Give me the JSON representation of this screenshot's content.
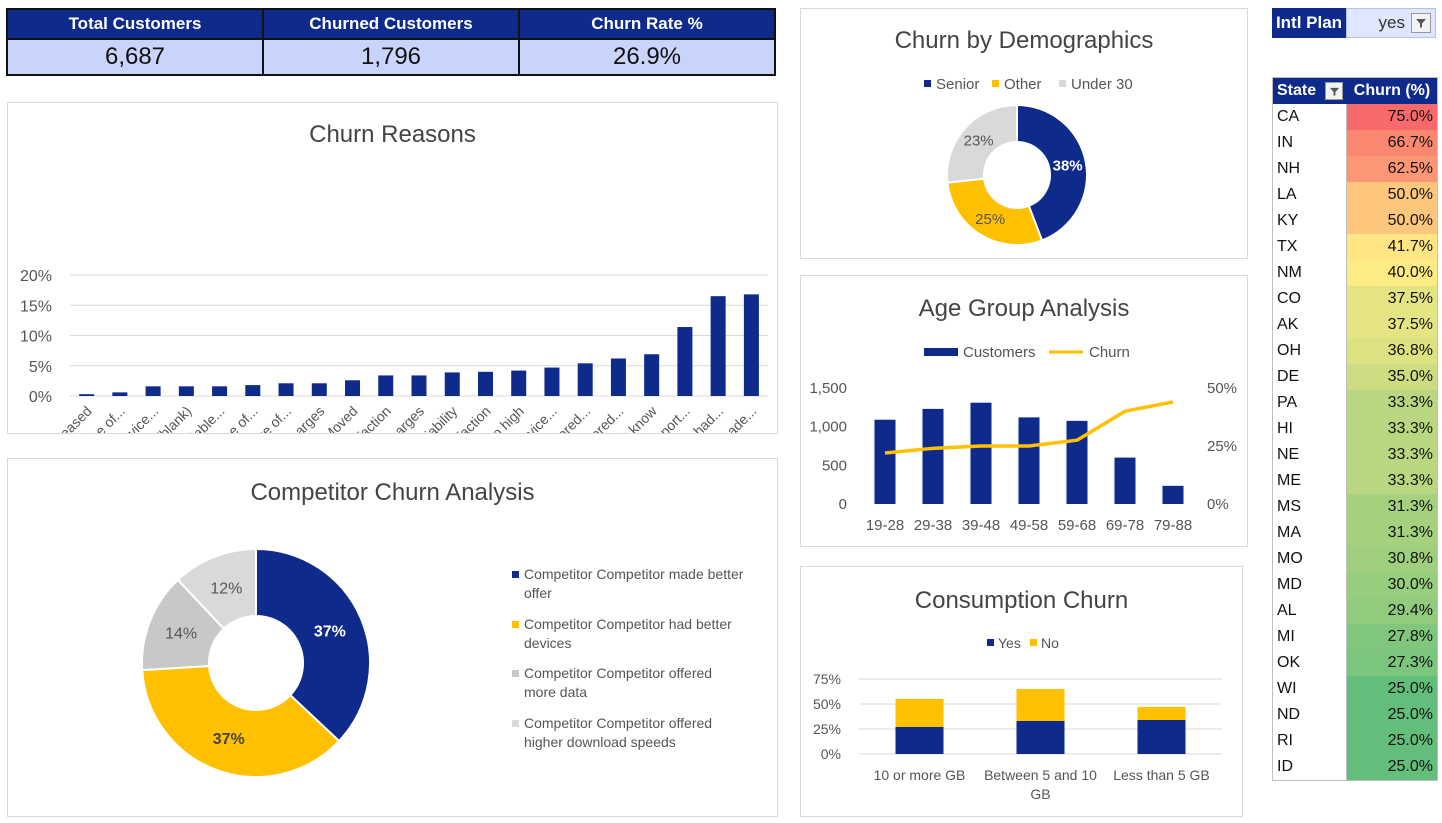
{
  "kpis": [
    {
      "label": "Total Customers",
      "value": "6,687"
    },
    {
      "label": "Churned Customers",
      "value": "1,796"
    },
    {
      "label": "Churn Rate %",
      "value": "26.9%"
    }
  ],
  "filter": {
    "label": "Intl Plan",
    "value": "yes",
    "icon": "filter-icon"
  },
  "state_table": {
    "headers": {
      "state": "State",
      "churn": "Churn (%)"
    },
    "rows": [
      {
        "state": "CA",
        "churn": "75.0%",
        "value": 75.0
      },
      {
        "state": "IN",
        "churn": "66.7%",
        "value": 66.7
      },
      {
        "state": "NH",
        "churn": "62.5%",
        "value": 62.5
      },
      {
        "state": "LA",
        "churn": "50.0%",
        "value": 50.0
      },
      {
        "state": "KY",
        "churn": "50.0%",
        "value": 50.0
      },
      {
        "state": "TX",
        "churn": "41.7%",
        "value": 41.7
      },
      {
        "state": "NM",
        "churn": "40.0%",
        "value": 40.0
      },
      {
        "state": "CO",
        "churn": "37.5%",
        "value": 37.5
      },
      {
        "state": "AK",
        "churn": "37.5%",
        "value": 37.5
      },
      {
        "state": "OH",
        "churn": "36.8%",
        "value": 36.8
      },
      {
        "state": "DE",
        "churn": "35.0%",
        "value": 35.0
      },
      {
        "state": "PA",
        "churn": "33.3%",
        "value": 33.3
      },
      {
        "state": "HI",
        "churn": "33.3%",
        "value": 33.3
      },
      {
        "state": "NE",
        "churn": "33.3%",
        "value": 33.3
      },
      {
        "state": "ME",
        "churn": "33.3%",
        "value": 33.3
      },
      {
        "state": "MS",
        "churn": "31.3%",
        "value": 31.3
      },
      {
        "state": "MA",
        "churn": "31.3%",
        "value": 31.3
      },
      {
        "state": "MO",
        "churn": "30.8%",
        "value": 30.8
      },
      {
        "state": "MD",
        "churn": "30.0%",
        "value": 30.0
      },
      {
        "state": "AL",
        "churn": "29.4%",
        "value": 29.4
      },
      {
        "state": "MI",
        "churn": "27.8%",
        "value": 27.8
      },
      {
        "state": "OK",
        "churn": "27.3%",
        "value": 27.3
      },
      {
        "state": "WI",
        "churn": "25.0%",
        "value": 25.0
      },
      {
        "state": "ND",
        "churn": "25.0%",
        "value": 25.0
      },
      {
        "state": "RI",
        "churn": "25.0%",
        "value": 25.0
      },
      {
        "state": "ID",
        "churn": "25.0%",
        "value": 25.0
      }
    ]
  },
  "colors": {
    "navy": "#0e2a8a",
    "yellow": "#ffc000",
    "grey": "#d9d9d9",
    "dark_grey": "#c8c8c8"
  },
  "chart_data": [
    {
      "id": "churn_reasons",
      "type": "bar",
      "title": "Churn Reasons",
      "categories": [
        "Deceased",
        "Poor expertise of...",
        "Lack of self-service...",
        "(blank)",
        "Lack of affordable...",
        "Poor expertise of...",
        "Limited range of...",
        "Extra data charges",
        "Moved",
        "Service dissatisfaction",
        "Long distance charges",
        "Network reliability",
        "Product dissatisfaction",
        "Price too high",
        "Attitude of service...",
        "Competitor offered...",
        "Competitor offered...",
        "Don't know",
        "Attitude of support...",
        "Competitor had...",
        "Competitor made..."
      ],
      "values": [
        0.3,
        0.6,
        1.6,
        1.6,
        1.6,
        1.8,
        2.1,
        2.1,
        2.6,
        3.4,
        3.4,
        3.9,
        4.0,
        4.2,
        4.7,
        5.4,
        6.2,
        6.9,
        11.4,
        16.5,
        16.8
      ],
      "yticks": [
        "0%",
        "5%",
        "10%",
        "15%",
        "20%"
      ],
      "ylim": [
        0,
        20
      ]
    },
    {
      "id": "demographics",
      "type": "pie",
      "title": "Churn by Demographics",
      "legend": [
        "Senior",
        "Other",
        "Under 30"
      ],
      "values": [
        38,
        25,
        23
      ],
      "labels": [
        "38%",
        "25%",
        "23%"
      ]
    },
    {
      "id": "age_group",
      "type": "bar",
      "title": "Age Group Analysis",
      "categories": [
        "19-28",
        "29-38",
        "39-48",
        "49-58",
        "59-68",
        "69-78",
        "79-88"
      ],
      "series": [
        {
          "name": "Customers",
          "type": "bar",
          "values": [
            1090,
            1230,
            1310,
            1120,
            1075,
            600,
            235
          ]
        },
        {
          "name": "Churn",
          "type": "line",
          "values": [
            22,
            24,
            25,
            25,
            27.5,
            40,
            44
          ]
        }
      ],
      "yticks_left": [
        "0",
        "500",
        "1,000",
        "1,500"
      ],
      "ylim_left": [
        0,
        1500
      ],
      "yticks_right": [
        "0%",
        "25%",
        "50%"
      ],
      "ylim_right": [
        0,
        50
      ]
    },
    {
      "id": "competitor",
      "type": "pie",
      "title": "Competitor Churn Analysis",
      "legend": [
        "Competitor Competitor made better offer",
        "Competitor Competitor had better devices",
        "Competitor Competitor offered more data",
        "Competitor Competitor offered higher download speeds"
      ],
      "values": [
        37,
        37,
        14,
        12
      ],
      "labels": [
        "37%",
        "37%",
        "14%",
        "12%"
      ]
    },
    {
      "id": "consumption",
      "type": "bar",
      "title": "Consumption Churn",
      "categories": [
        "10 or more GB",
        "Between 5 and 10 GB",
        "Less than 5 GB"
      ],
      "series": [
        {
          "name": "Yes",
          "values": [
            27,
            33,
            34
          ]
        },
        {
          "name": "No",
          "values": [
            28,
            32,
            13
          ]
        }
      ],
      "yticks": [
        "0%",
        "25%",
        "50%",
        "75%"
      ],
      "ylim": [
        0,
        75
      ]
    }
  ]
}
